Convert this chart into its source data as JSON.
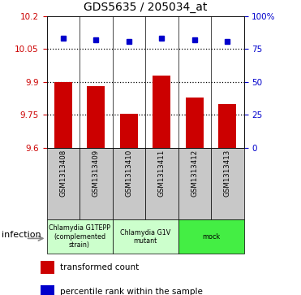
{
  "title": "GDS5635 / 205034_at",
  "samples": [
    "GSM1313408",
    "GSM1313409",
    "GSM1313410",
    "GSM1313411",
    "GSM1313412",
    "GSM1313413"
  ],
  "bar_values": [
    9.9,
    9.88,
    9.755,
    9.93,
    9.83,
    9.8
  ],
  "percentile_values": [
    83,
    82,
    81,
    83,
    82,
    81
  ],
  "bar_color": "#cc0000",
  "dot_color": "#0000cc",
  "ylim_left": [
    9.6,
    10.2
  ],
  "ylim_right": [
    0,
    100
  ],
  "yticks_left": [
    9.6,
    9.75,
    9.9,
    10.05,
    10.2
  ],
  "yticks_right": [
    0,
    25,
    50,
    75,
    100
  ],
  "ytick_labels_left": [
    "9.6",
    "9.75",
    "9.9",
    "10.05",
    "10.2"
  ],
  "ytick_labels_right": [
    "0",
    "25",
    "50",
    "75",
    "100%"
  ],
  "hline_values": [
    9.75,
    9.9,
    10.05
  ],
  "groups": [
    {
      "label": "Chlamydia G1TEPP\n(complemented\nstrain)",
      "start": 0,
      "end": 1,
      "color": "#ccffcc"
    },
    {
      "label": "Chlamydia G1V\nmutant",
      "start": 2,
      "end": 3,
      "color": "#ccffcc"
    },
    {
      "label": "mock",
      "start": 4,
      "end": 5,
      "color": "#44ee44"
    }
  ],
  "bar_bottom": 9.6,
  "bar_width": 0.55,
  "legend_items": [
    {
      "color": "#cc0000",
      "label": "transformed count"
    },
    {
      "color": "#0000cc",
      "label": "percentile rank within the sample"
    }
  ],
  "infection_label": "infection",
  "left_axis_color": "#cc0000",
  "right_axis_color": "#0000cc",
  "sample_box_color": "#c8c8c8",
  "group1_color": "#ccffcc",
  "group2_color": "#44ee44"
}
